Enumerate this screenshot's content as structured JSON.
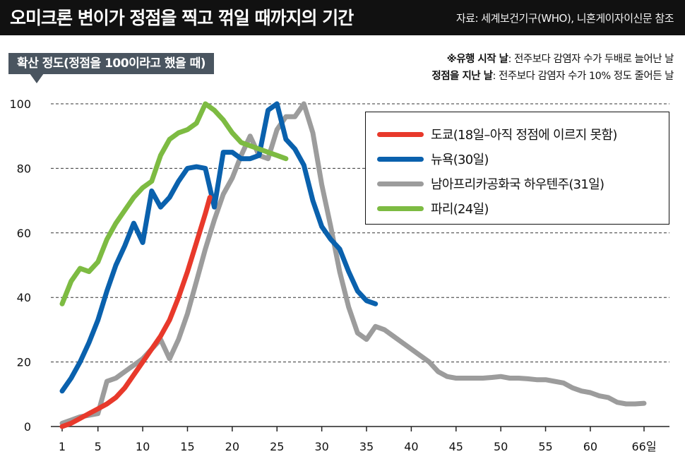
{
  "header": {
    "title": "오미크론 변이가 정점을 찍고 꺾일 때까지의 기간",
    "source": "자료: 세계보건기구(WHO), 니혼게이자이신문 참조"
  },
  "ylabel": "확산 정도(정점을 100이라고 했을 때)",
  "notes": [
    {
      "term": "※유행 시작 날",
      "desc": ": 전주보다 감염자 수가 두배로 늘어난 날"
    },
    {
      "term": "정점을 지난 날",
      "desc": ": 전주보다 감염자 수가 10% 정도 줄어든 날"
    }
  ],
  "chart_data": {
    "type": "line",
    "xlabel": "",
    "ylabel": "확산 정도(정점을 100이라고 했을 때)",
    "xlim": [
      1,
      66
    ],
    "ylim": [
      0,
      100
    ],
    "x_ticks": [
      1,
      5,
      10,
      15,
      20,
      25,
      30,
      35,
      40,
      45,
      50,
      55,
      60,
      66
    ],
    "x_tick_labels": [
      "1",
      "5",
      "10",
      "15",
      "20",
      "25",
      "30",
      "35",
      "40",
      "45",
      "50",
      "55",
      "60",
      "66일"
    ],
    "y_ticks": [
      0,
      20,
      40,
      60,
      80,
      100
    ],
    "grid": "horizontal dashed",
    "legend_position": "right",
    "series": [
      {
        "name": "도쿄(18일–아직 정점에 이르지 못함)",
        "color": "#e8392b",
        "points": [
          [
            1,
            0
          ],
          [
            2,
            1
          ],
          [
            3,
            2.5
          ],
          [
            4,
            4
          ],
          [
            5,
            5.5
          ],
          [
            6,
            7
          ],
          [
            7,
            9
          ],
          [
            8,
            12
          ],
          [
            9,
            16
          ],
          [
            10,
            20
          ],
          [
            11,
            24
          ],
          [
            12,
            28
          ],
          [
            13,
            33
          ],
          [
            14,
            40
          ],
          [
            15,
            48
          ],
          [
            16,
            57
          ],
          [
            17,
            66
          ],
          [
            17.5,
            71
          ]
        ]
      },
      {
        "name": "뉴욕(30일)",
        "color": "#0a61ad",
        "points": [
          [
            1,
            11
          ],
          [
            2,
            15
          ],
          [
            3,
            20
          ],
          [
            4,
            26
          ],
          [
            5,
            33
          ],
          [
            6,
            42
          ],
          [
            7,
            50
          ],
          [
            8,
            56
          ],
          [
            9,
            63
          ],
          [
            10,
            57
          ],
          [
            11,
            73
          ],
          [
            12,
            68
          ],
          [
            13,
            71
          ],
          [
            14,
            76
          ],
          [
            15,
            80
          ],
          [
            16,
            80.5
          ],
          [
            17,
            80
          ],
          [
            18,
            68
          ],
          [
            19,
            85
          ],
          [
            20,
            85
          ],
          [
            21,
            83
          ],
          [
            22,
            83
          ],
          [
            23,
            84
          ],
          [
            24,
            98
          ],
          [
            25,
            100
          ],
          [
            26,
            89
          ],
          [
            27,
            86
          ],
          [
            28,
            81
          ],
          [
            29,
            70
          ],
          [
            30,
            62
          ],
          [
            31,
            58
          ],
          [
            32,
            55
          ],
          [
            33,
            48
          ],
          [
            34,
            42
          ],
          [
            35,
            39
          ],
          [
            36,
            38
          ]
        ]
      },
      {
        "name": "남아프리카공화국 하우텐주(31일)",
        "color": "#9c9c9c",
        "points": [
          [
            1,
            1
          ],
          [
            2,
            2
          ],
          [
            3,
            3
          ],
          [
            4,
            3.5
          ],
          [
            5,
            4
          ],
          [
            6,
            14
          ],
          [
            7,
            15
          ],
          [
            8,
            17
          ],
          [
            9,
            19
          ],
          [
            10,
            21
          ],
          [
            11,
            24
          ],
          [
            12,
            27
          ],
          [
            13,
            21
          ],
          [
            14,
            27
          ],
          [
            15,
            35
          ],
          [
            16,
            45
          ],
          [
            17,
            55
          ],
          [
            18,
            64
          ],
          [
            19,
            72
          ],
          [
            20,
            77
          ],
          [
            21,
            84
          ],
          [
            22,
            90
          ],
          [
            23,
            84
          ],
          [
            24,
            83
          ],
          [
            25,
            92
          ],
          [
            26,
            96
          ],
          [
            27,
            96
          ],
          [
            28,
            100
          ],
          [
            29,
            91
          ],
          [
            30,
            75
          ],
          [
            31,
            62
          ],
          [
            32,
            48
          ],
          [
            33,
            37
          ],
          [
            34,
            29
          ],
          [
            35,
            27
          ],
          [
            36,
            31
          ],
          [
            37,
            30
          ],
          [
            38,
            28
          ],
          [
            39,
            26
          ],
          [
            40,
            24
          ],
          [
            41,
            22
          ],
          [
            42,
            20
          ],
          [
            43,
            17
          ],
          [
            44,
            15.5
          ],
          [
            45,
            15
          ],
          [
            46,
            15
          ],
          [
            47,
            15
          ],
          [
            48,
            15
          ],
          [
            49,
            15.2
          ],
          [
            50,
            15.5
          ],
          [
            51,
            15
          ],
          [
            52,
            15
          ],
          [
            53,
            14.8
          ],
          [
            54,
            14.5
          ],
          [
            55,
            14.5
          ],
          [
            56,
            14
          ],
          [
            57,
            13.5
          ],
          [
            58,
            12
          ],
          [
            59,
            11
          ],
          [
            60,
            10.5
          ],
          [
            61,
            9.5
          ],
          [
            62,
            9
          ],
          [
            63,
            7.5
          ],
          [
            64,
            7
          ],
          [
            65,
            7
          ],
          [
            66,
            7.2
          ]
        ]
      },
      {
        "name": "파리(24일)",
        "color": "#7dbb42",
        "points": [
          [
            1,
            38
          ],
          [
            2,
            45
          ],
          [
            3,
            49
          ],
          [
            4,
            48
          ],
          [
            5,
            51
          ],
          [
            6,
            58
          ],
          [
            7,
            63
          ],
          [
            8,
            67
          ],
          [
            9,
            71
          ],
          [
            10,
            74
          ],
          [
            11,
            76
          ],
          [
            12,
            84
          ],
          [
            13,
            89
          ],
          [
            14,
            91
          ],
          [
            15,
            92
          ],
          [
            16,
            94
          ],
          [
            17,
            100
          ],
          [
            18,
            98
          ],
          [
            19,
            95
          ],
          [
            20,
            91
          ],
          [
            21,
            88
          ],
          [
            22,
            87
          ],
          [
            23,
            86
          ],
          [
            24,
            85
          ],
          [
            25,
            84
          ],
          [
            26,
            83
          ]
        ]
      }
    ]
  }
}
